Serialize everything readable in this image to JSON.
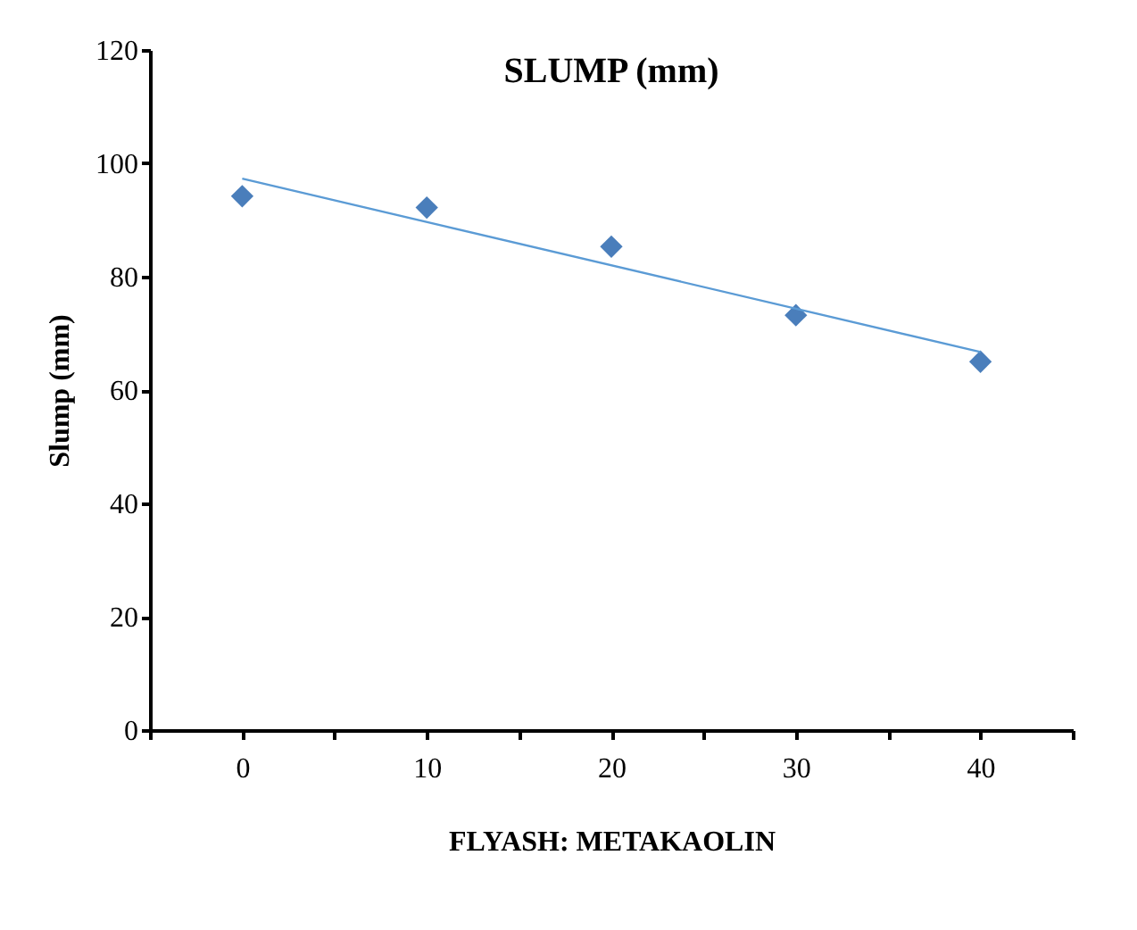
{
  "chart_data": {
    "type": "scatter",
    "title": "SLUMP (mm)",
    "xlabel": "FLYASH: METAKAOLIN",
    "ylabel": "Slump (mm)",
    "x": [
      0,
      10,
      20,
      30,
      40
    ],
    "series": [
      {
        "color": "#4a7ebb",
        "marker": "diamond",
        "values": [
          94.2,
          92.2,
          85.3,
          73.2,
          65.0
        ]
      },
      {
        "type": "line",
        "color": "#5b9bd5",
        "x": [
          0,
          40
        ],
        "values": [
          97.3,
          66.7
        ],
        "line_style": "solid"
      }
    ],
    "xlim": [
      -5,
      45
    ],
    "xticks": [
      {
        "value": -5,
        "label": null
      },
      0,
      {
        "value": 5,
        "label": null
      },
      10,
      {
        "value": 15,
        "label": null
      },
      20,
      {
        "value": 25,
        "label": null
      },
      30,
      {
        "value": 35,
        "label": null
      },
      40,
      {
        "value": 45,
        "label": null
      }
    ],
    "ylim": [
      0,
      120
    ],
    "yticks": [
      0,
      20,
      40,
      60,
      80,
      100,
      120
    ],
    "grid": false
  }
}
